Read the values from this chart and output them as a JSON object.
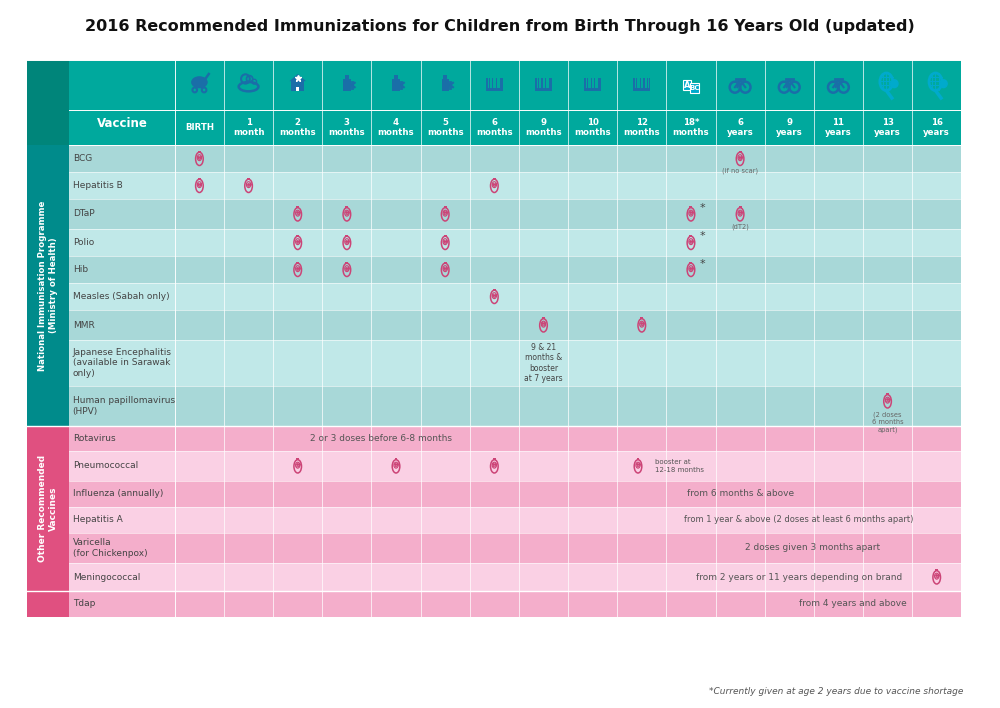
{
  "title": "2016 Recommended Immunizations for Children from Birth Through 16 Years Old (updated)",
  "footnote": "*Currently given at age 2 years due to vaccine shortage",
  "col_labels": [
    "BIRTH",
    "1\nmonth",
    "2\nmonths",
    "3\nmonths",
    "4\nmonths",
    "5\nmonths",
    "6\nmonths",
    "9\nmonths",
    "10\nmonths",
    "12\nmonths",
    "18*\nmonths",
    "6\nyears",
    "9\nyears",
    "11\nyears",
    "13\nyears",
    "16\nyears"
  ],
  "side_label_1": "National Immunisation Programme\n(Ministry of Health)",
  "side_label_2": "Other Recommended\nVaccines",
  "header_teal_dark": "#00857A",
  "header_teal_main": "#00A99D",
  "nip_side_color": "#008B8B",
  "orv_side_color": "#E05080",
  "tdap_side_color": "#E05080",
  "nip_row_colors": [
    "#A8D8D8",
    "#C0E8E8"
  ],
  "orv_row_colors": [
    "#F4AECB",
    "#FAD0E4"
  ],
  "tdap_row_color": "#F4AECB",
  "vaccine_text_color": "#444444",
  "cell_text_color": "#555555",
  "icon_teal": "#1A6EA8",
  "icon_cyan": "#00AACC",
  "vac_icon_color": "#CC4477",
  "vac_icon_color_pink": "#CC4477"
}
